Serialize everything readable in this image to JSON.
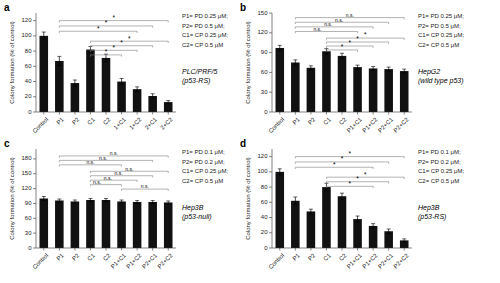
{
  "chart_data": [
    {
      "type": "bar",
      "panel_label": "a",
      "title": "PLC/PRF/5\n(p53-RS)",
      "ylabel": "Colony formation (% of control)",
      "categories": [
        "Control",
        "P1",
        "P2",
        "C1",
        "C2",
        "1+C1",
        "1+C2",
        "2+C1",
        "2+C2"
      ],
      "values": [
        100,
        67,
        38,
        82,
        71,
        40,
        30,
        21,
        13
      ],
      "errors": [
        5,
        6,
        4,
        4,
        5,
        4,
        3,
        3,
        2
      ],
      "color": "#111111",
      "ylim": [
        0,
        130
      ],
      "yticks": [
        0,
        20,
        40,
        60,
        80,
        100,
        120
      ],
      "notes": [
        "P1= PD 0.25 μM;",
        "P2= PD 0.5 μM;",
        "C1= CP 0.25 μM;",
        "C2= CP 0.5 μM"
      ],
      "brackets": [
        {
          "x1": 1,
          "x2": 8,
          "y": 120,
          "label": "*"
        },
        {
          "x1": 1,
          "x2": 7,
          "y": 113,
          "label": "*"
        },
        {
          "x1": 1,
          "x2": 6,
          "y": 106,
          "label": "*"
        },
        {
          "x1": 3,
          "x2": 8,
          "y": 93,
          "label": "*"
        },
        {
          "x1": 3,
          "x2": 7,
          "y": 87,
          "label": "*"
        },
        {
          "x1": 3,
          "x2": 6,
          "y": 81,
          "label": "*"
        },
        {
          "x1": 3,
          "x2": 5,
          "y": 75,
          "label": "*"
        }
      ]
    },
    {
      "type": "bar",
      "panel_label": "b",
      "title": "HepG2\n(wild type p53)",
      "ylabel": "Colony formation (% of control)",
      "categories": [
        "Control",
        "P1",
        "P2",
        "C1",
        "C2",
        "P1+C1",
        "P1+C2",
        "P2+C1",
        "P2+C2"
      ],
      "values": [
        97,
        75,
        67,
        92,
        85,
        68,
        66,
        65,
        62
      ],
      "errors": [
        4,
        4,
        3,
        4,
        4,
        3,
        3,
        3,
        3
      ],
      "color": "#111111",
      "ylim": [
        0,
        150
      ],
      "yticks": [
        0,
        30,
        60,
        90,
        120,
        150
      ],
      "notes": [
        "P1= PD 0.25 μM;",
        "P2= PD 0.5 μM;",
        "C1= CP 0.25 μM;",
        "C2= CP 0.5 μM"
      ],
      "brackets": [
        {
          "x1": 1,
          "x2": 8,
          "y": 143,
          "label": "n.s."
        },
        {
          "x1": 1,
          "x2": 7,
          "y": 136,
          "label": "n.s."
        },
        {
          "x1": 1,
          "x2": 6,
          "y": 129,
          "label": "n.s."
        },
        {
          "x1": 1,
          "x2": 5,
          "y": 122,
          "label": "n.s."
        },
        {
          "x1": 3,
          "x2": 8,
          "y": 112,
          "label": "*"
        },
        {
          "x1": 3,
          "x2": 7,
          "y": 106,
          "label": "*"
        },
        {
          "x1": 3,
          "x2": 6,
          "y": 100,
          "label": "*"
        },
        {
          "x1": 3,
          "x2": 5,
          "y": 94,
          "label": "*"
        }
      ]
    },
    {
      "type": "bar",
      "panel_label": "c",
      "title": "Hep3B\n(p53-null)",
      "ylabel": "Colony formation (% of control)",
      "categories": [
        "Control",
        "P1",
        "P2",
        "C1",
        "C2",
        "P1+C1",
        "P1+C2",
        "P2+C1",
        "P2+C2"
      ],
      "values": [
        100,
        96,
        94,
        97,
        97,
        94,
        93,
        93,
        92
      ],
      "errors": [
        4,
        3,
        3,
        3,
        3,
        3,
        3,
        3,
        3
      ],
      "color": "#111111",
      "ylim": [
        0,
        200
      ],
      "yticks": [
        0,
        30,
        60,
        90,
        120,
        150,
        180
      ],
      "notes": [
        "P1= PD 0.1 μM;",
        "P2= PD 0.2 μM;",
        "C1= CP 0.25 μM;",
        "C2= CP 0.5 μM"
      ],
      "brackets": [
        {
          "x1": 1,
          "x2": 8,
          "y": 186,
          "label": "n.s."
        },
        {
          "x1": 1,
          "x2": 7,
          "y": 177,
          "label": "n.s."
        },
        {
          "x1": 1,
          "x2": 5,
          "y": 168,
          "label": "n.s."
        },
        {
          "x1": 3,
          "x2": 8,
          "y": 155,
          "label": "n.s."
        },
        {
          "x1": 3,
          "x2": 7,
          "y": 146,
          "label": "n.s."
        },
        {
          "x1": 3,
          "x2": 6,
          "y": 137,
          "label": "n.s."
        },
        {
          "x1": 3,
          "x2": 5,
          "y": 128,
          "label": "n.s."
        },
        {
          "x1": 5,
          "x2": 8,
          "y": 119,
          "label": "n.s."
        }
      ]
    },
    {
      "type": "bar",
      "panel_label": "d",
      "title": "Hep3B\n(p53-RS)",
      "ylabel": "Colony formation (% of control)",
      "categories": [
        "Control",
        "P1",
        "P2",
        "C1",
        "C2",
        "P1+C1",
        "P1+C2",
        "P2+C1",
        "P2+C2"
      ],
      "values": [
        100,
        62,
        48,
        80,
        68,
        38,
        29,
        22,
        10
      ],
      "errors": [
        4,
        5,
        3,
        5,
        4,
        4,
        3,
        3,
        2
      ],
      "color": "#111111",
      "ylim": [
        0,
        130
      ],
      "yticks": [
        0,
        20,
        40,
        60,
        80,
        100,
        120
      ],
      "notes": [
        "P1= PD 0.1 μM;",
        "P2= PD 0.2 μM;",
        "C1= CP 0.25 μM;",
        "C2= CP 0.5 μM"
      ],
      "brackets": [
        {
          "x1": 1,
          "x2": 8,
          "y": 120,
          "label": "*"
        },
        {
          "x1": 1,
          "x2": 7,
          "y": 113,
          "label": "*"
        },
        {
          "x1": 1,
          "x2": 6,
          "y": 106,
          "label": "*"
        },
        {
          "x1": 3,
          "x2": 8,
          "y": 93,
          "label": "*"
        },
        {
          "x1": 3,
          "x2": 7,
          "y": 87,
          "label": "*"
        },
        {
          "x1": 3,
          "x2": 6,
          "y": 81,
          "label": "*"
        }
      ]
    }
  ]
}
